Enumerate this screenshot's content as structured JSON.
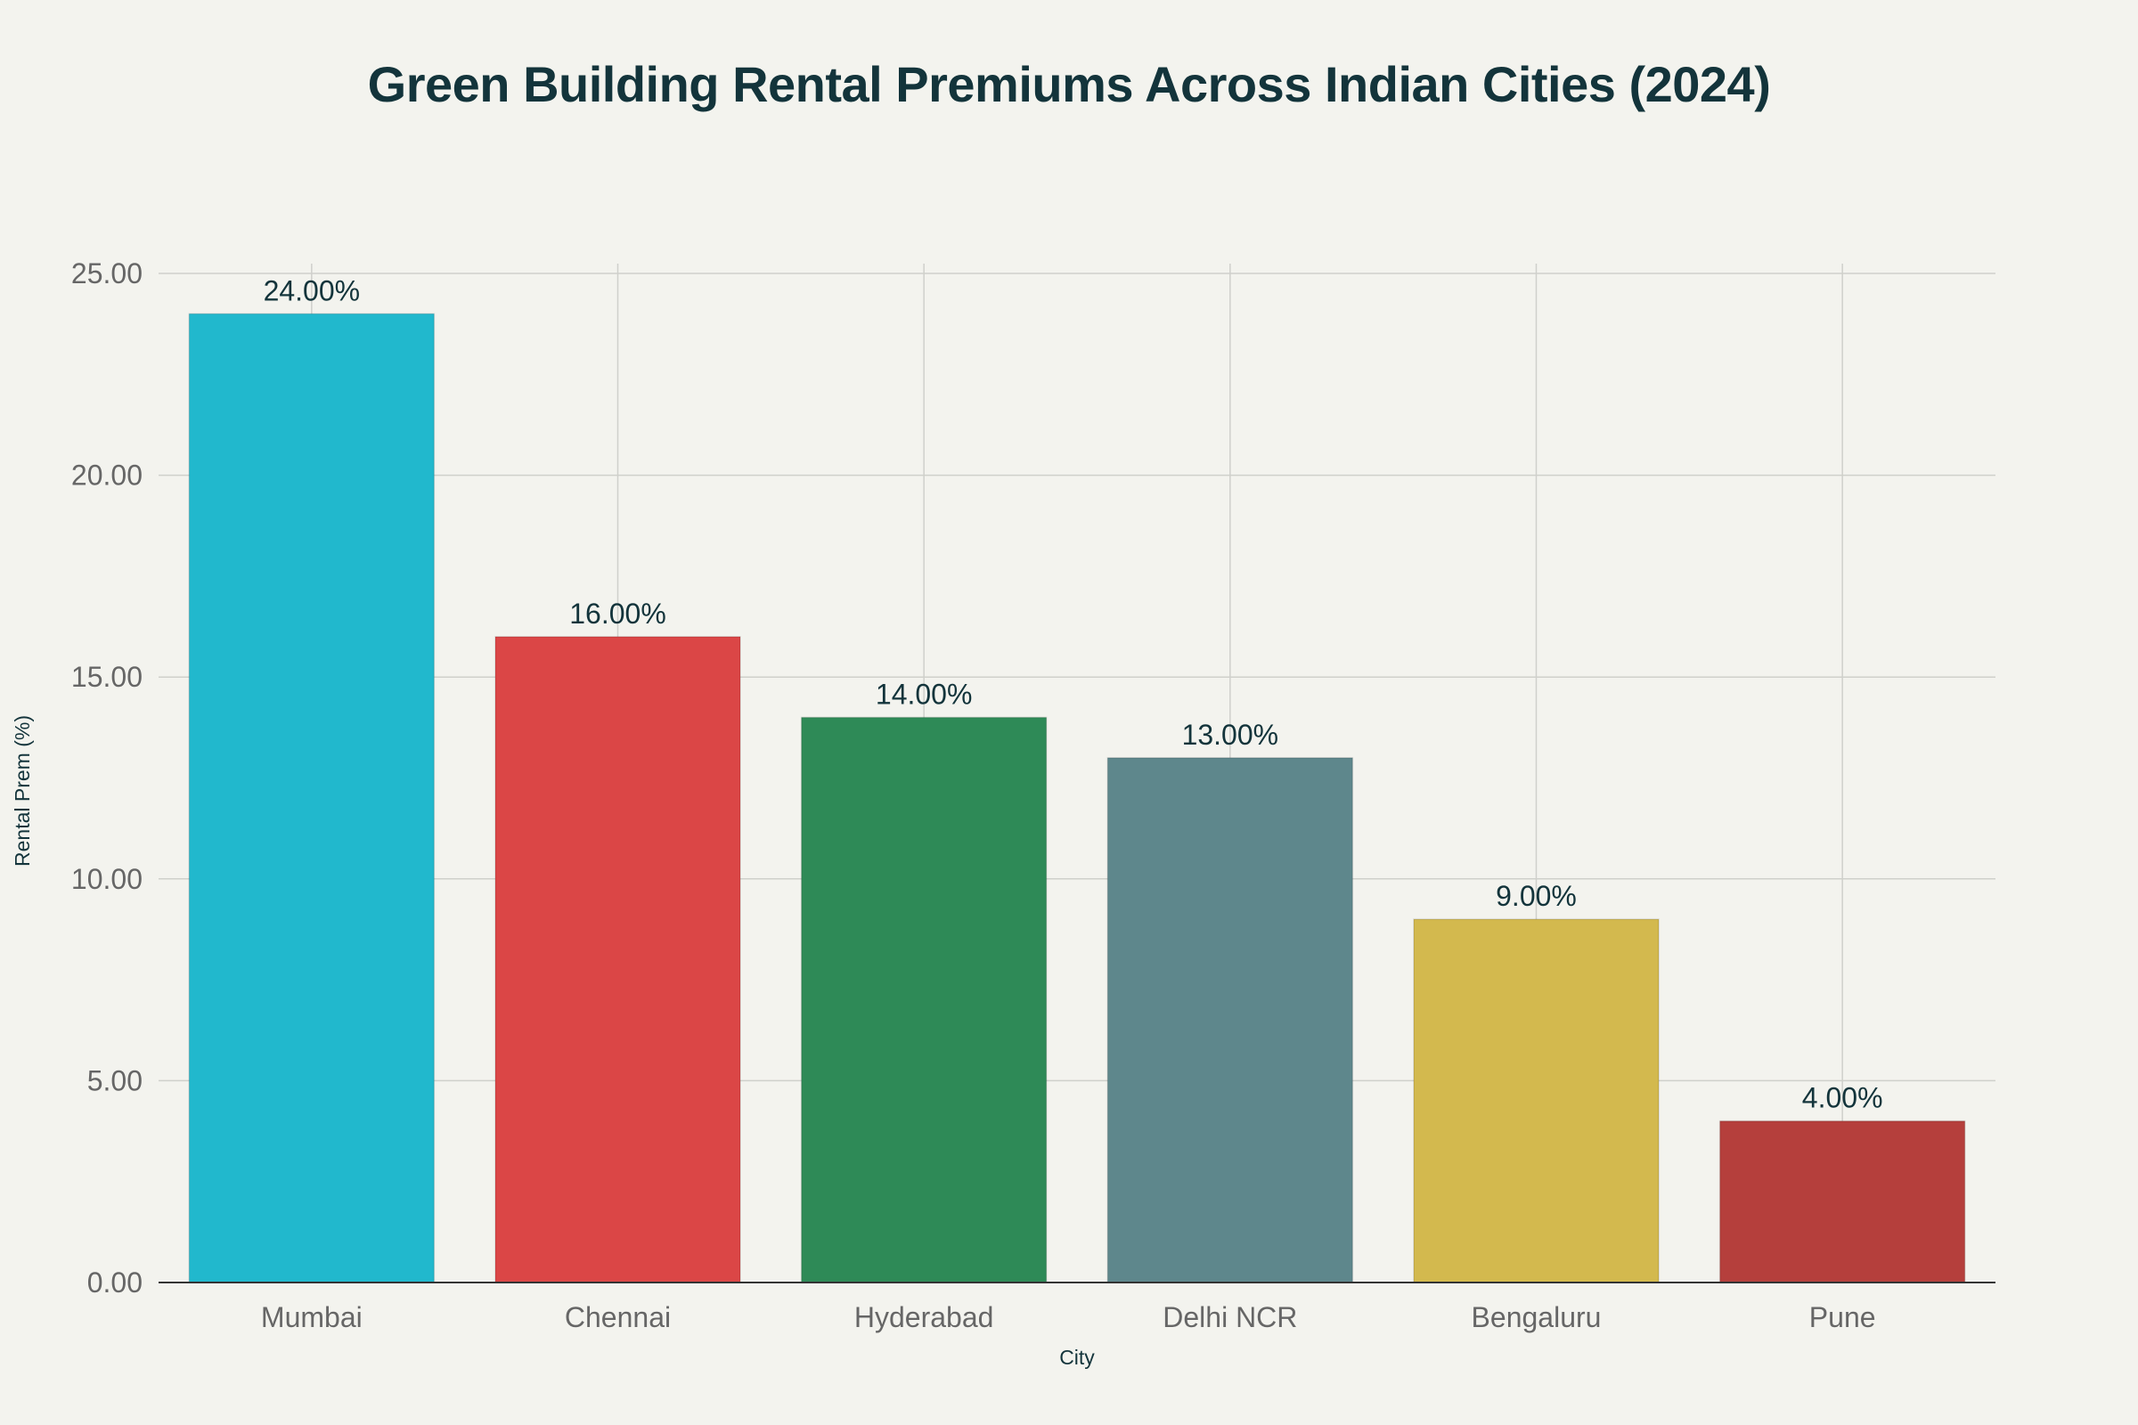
{
  "chart_data": {
    "type": "bar",
    "title": "Green Building Rental Premiums Across Indian Cities (2024)",
    "xlabel": "City",
    "ylabel": "Rental Prem (%)",
    "categories": [
      "Mumbai",
      "Chennai",
      "Hyderabad",
      "Delhi NCR",
      "Bengaluru",
      "Pune"
    ],
    "values": [
      24.0,
      16.0,
      14.0,
      13.0,
      9.0,
      4.0
    ],
    "data_labels": [
      "24.00%",
      "16.00%",
      "14.00%",
      "13.00%",
      "9.00%",
      "4.00%"
    ],
    "bar_colors": [
      "#21b8cd",
      "#db4646",
      "#2e8a57",
      "#5e878c",
      "#d3b94e",
      "#b53f3c"
    ],
    "ylim": [
      0,
      25
    ],
    "yticks": [
      0,
      5,
      10,
      15,
      20,
      25
    ],
    "ytick_labels": [
      "0.00",
      "5.00",
      "10.00",
      "15.00",
      "20.00",
      "25.00"
    ],
    "grid": true,
    "legend": "none"
  }
}
